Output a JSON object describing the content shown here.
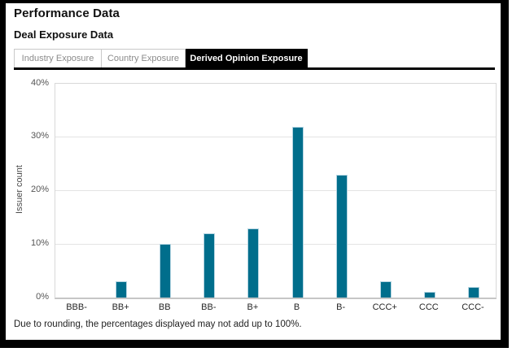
{
  "page": {
    "title": "Performance Data",
    "subtitle": "Deal Exposure Data",
    "footnote": "Due to rounding, the percentages displayed may not add up to 100%."
  },
  "tabs": {
    "items": [
      {
        "label": "Industry Exposure",
        "active": false
      },
      {
        "label": "Country Exposure",
        "active": false
      },
      {
        "label": "Derived Opinion Exposure",
        "active": true
      }
    ]
  },
  "chart_data": {
    "type": "bar",
    "categories": [
      "BBB-",
      "BB+",
      "BB",
      "BB-",
      "B+",
      "B",
      "B-",
      "CCC+",
      "CCC",
      "CCC-"
    ],
    "values": [
      0,
      3,
      10,
      12,
      13,
      32,
      23,
      3,
      1,
      2
    ],
    "title": "",
    "xlabel": "",
    "ylabel": "Issuer count",
    "ylim": [
      0,
      40
    ],
    "ytick_step": 10,
    "ytick_labels": [
      "0%",
      "10%",
      "20%",
      "30%",
      "40%"
    ],
    "grid": true,
    "legend": "none",
    "bar_color": "#006e8c",
    "bar_border_color": "#b5d5e2"
  },
  "colors": {
    "active_tab_bg": "#000000",
    "active_tab_text": "#ffffff",
    "inactive_tab_text": "#8b8b8b",
    "frame_border": "#000000",
    "gridline": "#e3e3e3"
  }
}
